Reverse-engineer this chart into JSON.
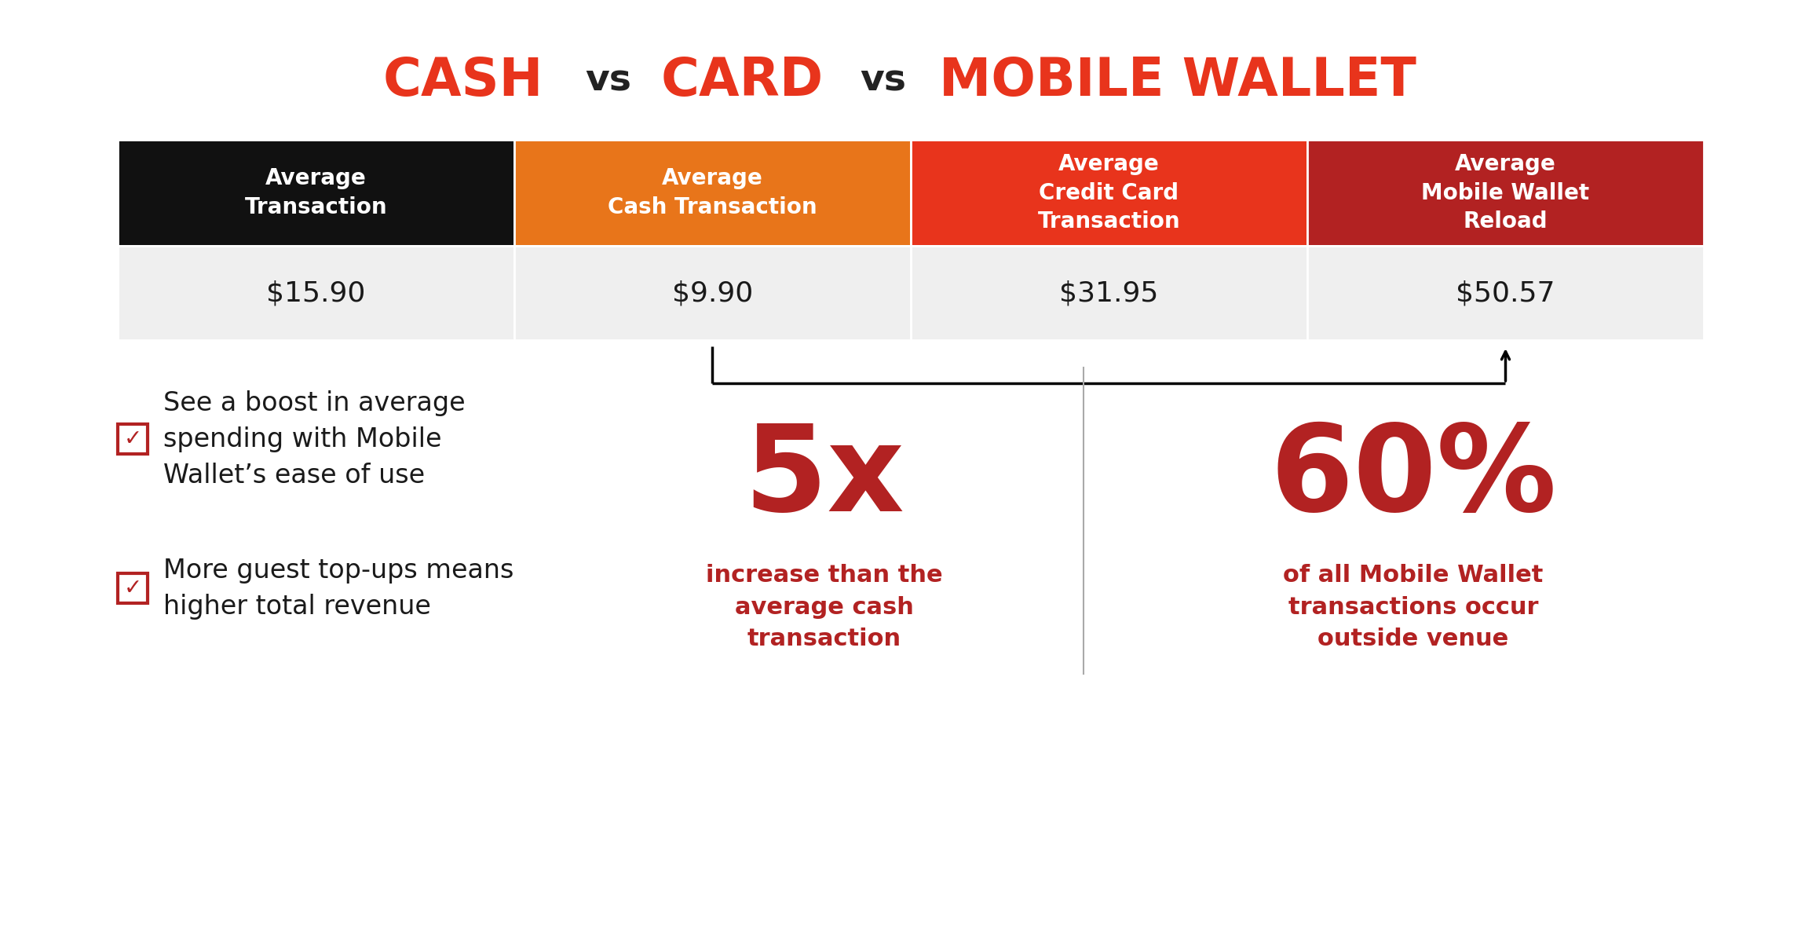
{
  "title_parts": [
    {
      "text": "CASH",
      "color": "#E8341C"
    },
    {
      "text": " vs ",
      "color": "#1a1a1a"
    },
    {
      "text": "CARD",
      "color": "#E8341C"
    },
    {
      "text": " vs ",
      "color": "#1a1a1a"
    },
    {
      "text": "MOBILE WALLET",
      "color": "#E8341C"
    }
  ],
  "header_cols": [
    {
      "label": "Average\nTransaction",
      "bg": "#111111",
      "fg": "#ffffff"
    },
    {
      "label": "Average\nCash Transaction",
      "bg": "#E8751A",
      "fg": "#ffffff"
    },
    {
      "label": "Average\nCredit Card\nTransaction",
      "bg": "#E8341C",
      "fg": "#ffffff"
    },
    {
      "label": "Average\nMobile Wallet\nReload",
      "bg": "#B22222",
      "fg": "#ffffff"
    }
  ],
  "values": [
    "$15.90",
    "$9.90",
    "$31.95",
    "$50.57"
  ],
  "bg_color": "#ffffff",
  "row_bg": "#efefef",
  "bullet_color": "#B22222",
  "bullets": [
    "See a boost in average\nspending with Mobile\nWallet’s ease of use",
    "More guest top-ups means\nhigher total revenue"
  ],
  "stat1_big": "5x",
  "stat1_sub": "increase than the\naverage cash\ntransaction",
  "stat2_big": "60%",
  "stat2_sub": "of all Mobile Wallet\ntransactions occur\noutside venue",
  "stat_color": "#B22222",
  "divider_color": "#aaaaaa"
}
